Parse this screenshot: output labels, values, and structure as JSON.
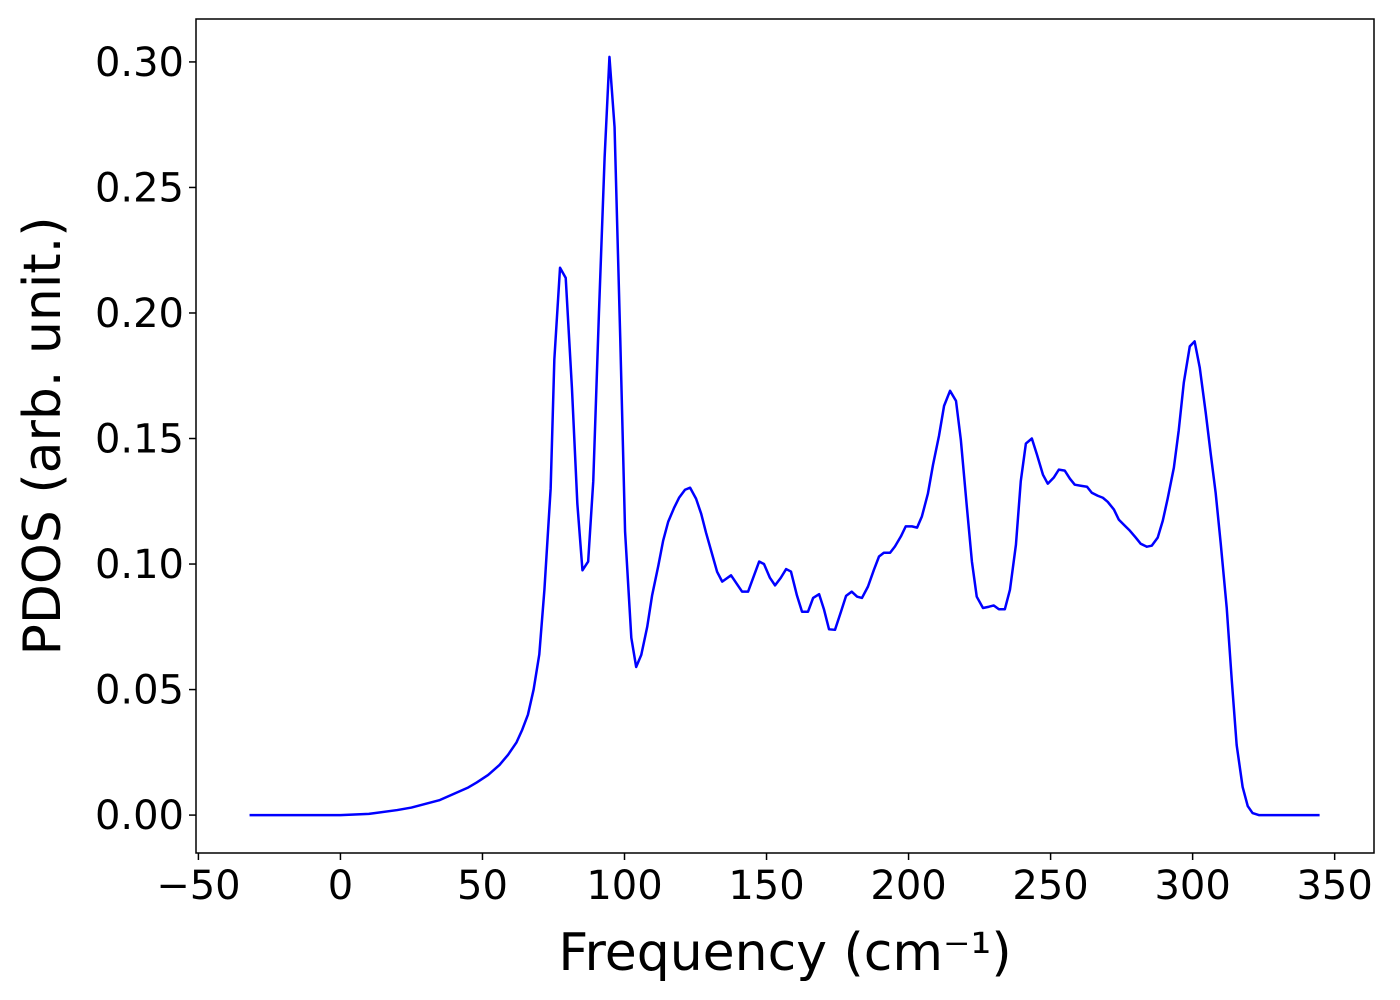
{
  "chart_data": {
    "type": "line",
    "xlabel": "Frequency (cm⁻¹)",
    "ylabel": "PDOS (arb. unit.)",
    "color": "#0000ff",
    "x": [
      -32,
      -20,
      -10,
      0,
      10,
      20,
      25,
      30,
      35,
      40,
      45,
      48,
      52,
      56,
      59,
      62,
      64,
      66,
      68,
      70,
      71.8,
      74,
      75.3,
      77.3,
      79.3,
      81.5,
      83.4,
      85.2,
      87.2,
      89,
      91,
      93,
      94.7,
      96.5,
      98.5,
      100.2,
      102.4,
      104.1,
      105.9,
      108,
      109.7,
      111.9,
      113.6,
      115.4,
      117.5,
      119.2,
      121.3,
      123.1,
      125.2,
      127,
      128.7,
      130.8,
      132.6,
      134.4,
      137.5,
      141.4,
      143.5,
      147.4,
      149.1,
      151.2,
      153,
      155,
      156.9,
      158.6,
      160.7,
      162.5,
      164.6,
      166.4,
      168.5,
      170.2,
      172,
      174.1,
      176.2,
      178,
      180,
      181.9,
      183.6,
      185.7,
      187.8,
      189.6,
      191.3,
      193.5,
      195.2,
      197.3,
      199,
      201.2,
      203,
      204.7,
      206.8,
      208.6,
      210.7,
      212.5,
      214.6,
      216.7,
      218.4,
      220.5,
      222.3,
      224,
      226.2,
      228.3,
      230,
      231.8,
      233.9,
      235.7,
      237.8,
      239.5,
      241.3,
      243.4,
      245.2,
      247.3,
      249,
      251.1,
      252.9,
      255,
      256.8,
      258.5,
      260.6,
      262.8,
      264.5,
      266.6,
      268.4,
      270.1,
      272.3,
      274,
      276.1,
      277.9,
      280,
      281.7,
      283.9,
      285.6,
      287.7,
      289.5,
      291.2,
      293.4,
      295.1,
      296.9,
      299,
      300.7,
      302.5,
      304.6,
      306.4,
      308.1,
      309.9,
      312,
      313.8,
      315.5,
      317.6,
      319.4,
      321.1,
      323.3,
      330,
      337,
      344.7
    ],
    "values": [
      0,
      0,
      0,
      0,
      0.0005,
      0.002,
      0.003,
      0.0045,
      0.006,
      0.0085,
      0.011,
      0.013,
      0.016,
      0.02,
      0.024,
      0.029,
      0.034,
      0.04,
      0.05,
      0.064,
      0.0897,
      0.13,
      0.1815,
      0.218,
      0.214,
      0.17,
      0.124,
      0.0975,
      0.101,
      0.133,
      0.2,
      0.262,
      0.302,
      0.274,
      0.19,
      0.113,
      0.0706,
      0.059,
      0.0638,
      0.075,
      0.0874,
      0.0993,
      0.1093,
      0.1169,
      0.1225,
      0.1264,
      0.1296,
      0.1304,
      0.126,
      0.12,
      0.1125,
      0.1041,
      0.0969,
      0.093,
      0.0955,
      0.089,
      0.089,
      0.101,
      0.1,
      0.0945,
      0.0915,
      0.0945,
      0.098,
      0.097,
      0.0875,
      0.081,
      0.081,
      0.0865,
      0.088,
      0.082,
      0.074,
      0.0738,
      0.081,
      0.0873,
      0.089,
      0.087,
      0.0865,
      0.091,
      0.0977,
      0.103,
      0.1045,
      0.1045,
      0.107,
      0.111,
      0.115,
      0.115,
      0.1145,
      0.119,
      0.128,
      0.1395,
      0.151,
      0.163,
      0.169,
      0.165,
      0.1495,
      0.123,
      0.101,
      0.087,
      0.0825,
      0.083,
      0.0835,
      0.082,
      0.082,
      0.0898,
      0.1077,
      0.133,
      0.148,
      0.15,
      0.1436,
      0.1356,
      0.132,
      0.1344,
      0.1376,
      0.1372,
      0.134,
      0.1316,
      0.1312,
      0.1308,
      0.1284,
      0.1272,
      0.1264,
      0.1248,
      0.1217,
      0.1177,
      0.1153,
      0.1133,
      0.1105,
      0.1081,
      0.1069,
      0.1073,
      0.1105,
      0.1173,
      0.126,
      0.1384,
      0.1532,
      0.1723,
      0.1867,
      0.1887,
      0.1783,
      0.1604,
      0.1436,
      0.1284,
      0.1081,
      0.0826,
      0.0534,
      0.0279,
      0.0112,
      0.0036,
      0.0008,
      0,
      0,
      0,
      0
    ],
    "xlim": [
      -50.85,
      363.85
    ],
    "ylim": [
      -0.0151,
      0.3171
    ],
    "xticks": [
      {
        "value": -50,
        "label": "−50"
      },
      0,
      50,
      100,
      150,
      200,
      250,
      300,
      350
    ],
    "yticks": [
      {
        "value": 0,
        "label": "0.00"
      },
      {
        "value": 0.05,
        "label": "0.05"
      },
      {
        "value": 0.1,
        "label": "0.10"
      },
      {
        "value": 0.15,
        "label": "0.15"
      },
      {
        "value": 0.2,
        "label": "0.20"
      },
      {
        "value": 0.25,
        "label": "0.25"
      },
      {
        "value": 0.3,
        "label": "0.30"
      }
    ],
    "grid": false
  }
}
